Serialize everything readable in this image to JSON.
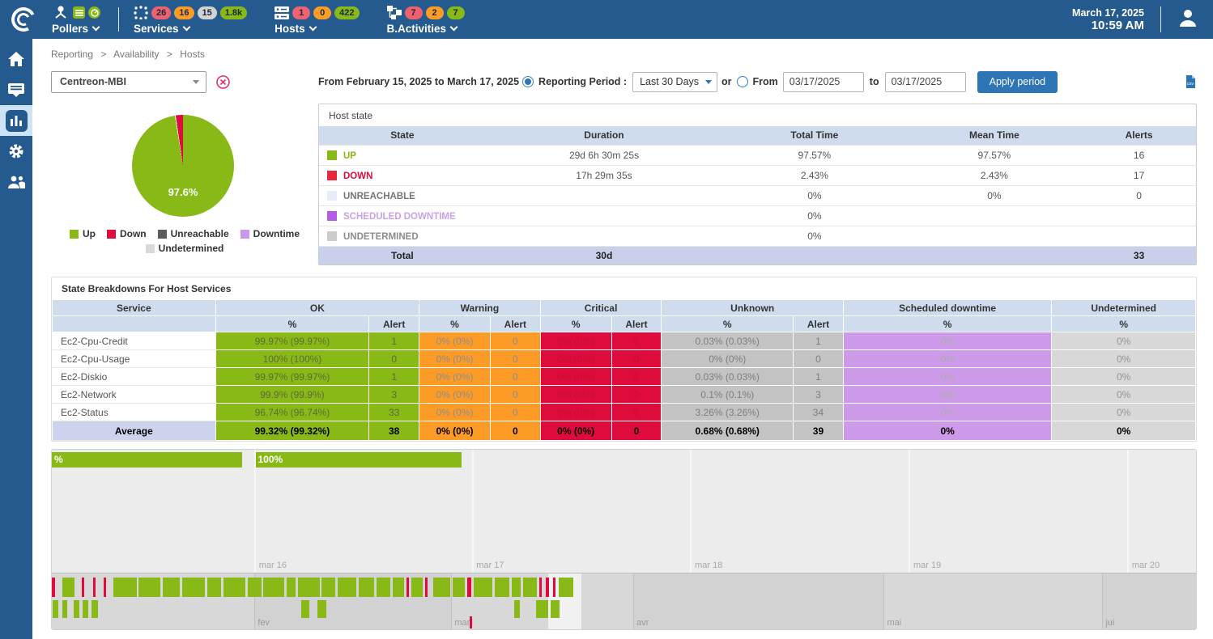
{
  "colors": {
    "topbar_bg": "#255a8e",
    "accent_blue": "#2e75b6",
    "up_green": "#88b917",
    "down_red": "#e00b3d",
    "warning_orange": "#fd9b27",
    "unknown_gray": "#c3c3c3",
    "downtime_purple": "#cd9aea",
    "undetermined_gray": "#d8d8d8",
    "badge_red": "#f0616f",
    "badge_orange": "#fd9b27",
    "badge_gray": "#d3d3d3",
    "badge_green": "#88b917",
    "table_header_bg": "#cfdced",
    "total_row_bg": "#c9d0ea"
  },
  "topbar": {
    "clock": {
      "date": "March 17, 2025",
      "time": "10:59 AM"
    },
    "menus": [
      {
        "label": "Pollers",
        "icon_badges": [
          {
            "name": "list",
            "color": "#88b917"
          },
          {
            "name": "gauge",
            "color": "#88b917"
          }
        ],
        "badges": []
      },
      {
        "label": "Services",
        "badges": [
          {
            "text": "26",
            "color": "#f0616f"
          },
          {
            "text": "16",
            "color": "#fd9b27"
          },
          {
            "text": "15",
            "color": "#d3d3d3"
          },
          {
            "text": "1.8k",
            "color": "#88b917"
          }
        ]
      },
      {
        "label": "Hosts",
        "badges": [
          {
            "text": "1",
            "color": "#f0616f"
          },
          {
            "text": "0",
            "color": "#fd9b27"
          },
          {
            "text": "422",
            "color": "#88b917"
          }
        ]
      },
      {
        "label": "B.Activities",
        "badges": [
          {
            "text": "7",
            "color": "#f0616f"
          },
          {
            "text": "2",
            "color": "#fd9b27"
          },
          {
            "text": "7",
            "color": "#88b917"
          }
        ]
      }
    ]
  },
  "sidebar": {
    "items": [
      {
        "icon": "home",
        "active": false
      },
      {
        "icon": "monitoring",
        "active": false
      },
      {
        "icon": "reporting",
        "active": true
      },
      {
        "icon": "configuration",
        "active": false
      },
      {
        "icon": "administration",
        "active": false
      }
    ]
  },
  "breadcrumb": {
    "items": [
      "Reporting",
      "Availability",
      "Hosts"
    ],
    "separator": ">"
  },
  "filters": {
    "host_select_value": "Centreon-MBI",
    "period_text": "From February 15, 2025 to March 17, 2025",
    "reporting_period_label": "Reporting Period :",
    "period_select_value": "Last 30 Days",
    "or_label": "or",
    "from_label": "From",
    "from_value": "03/17/2025",
    "to_label": "to",
    "to_value": "03/17/2025",
    "apply_label": "Apply period"
  },
  "pie": {
    "value_label": "97.6%",
    "slices": [
      {
        "name": "Up",
        "value": 97.6,
        "color": "#88b917"
      },
      {
        "name": "Down",
        "value": 2.4,
        "color": "#e00b3d"
      }
    ],
    "legend": [
      {
        "label": "Up",
        "color": "#88b917"
      },
      {
        "label": "Down",
        "color": "#e00b3d"
      },
      {
        "label": "Unreachable",
        "color": "#5b5b5b"
      },
      {
        "label": "Downtime",
        "color": "#ca97ef"
      },
      {
        "label": "Undetermined",
        "color": "#d9d9d9"
      }
    ]
  },
  "host_state": {
    "title": "Host state",
    "columns": [
      "State",
      "Duration",
      "Total Time",
      "Mean Time",
      "Alerts"
    ],
    "rows": [
      {
        "state": "UP",
        "square": "#88b917",
        "color": "#88b917",
        "duration": "29d 6h 30m 25s",
        "total_time": "97.57%",
        "mean_time": "97.57%",
        "alerts": "16"
      },
      {
        "state": "DOWN",
        "square": "#e8283c",
        "color": "#e00b3d",
        "duration": "17h 29m 35s",
        "total_time": "2.43%",
        "mean_time": "2.43%",
        "alerts": "17"
      },
      {
        "state": "UNREACHABLE",
        "square": "#e7edf6",
        "color": "#757575",
        "duration": "",
        "total_time": "0%",
        "mean_time": "0%",
        "alerts": "0"
      },
      {
        "state": "SCHEDULED DOWNTIME",
        "square": "#b55ce5",
        "color": "#c9a2e8",
        "duration": "",
        "total_time": "0%",
        "mean_time": "",
        "alerts": ""
      },
      {
        "state": "UNDETERMINED",
        "square": "#cccccc",
        "color": "#8c8c8c",
        "duration": "",
        "total_time": "0%",
        "mean_time": "",
        "alerts": ""
      }
    ],
    "total_row": {
      "label": "Total",
      "duration": "30d",
      "total_time": "",
      "mean_time": "",
      "alerts": "33"
    }
  },
  "breakdown": {
    "title": "State Breakdowns For Host Services",
    "group_headers": [
      "Service",
      "OK",
      "Warning",
      "Critical",
      "Unknown",
      "Scheduled downtime",
      "Undetermined"
    ],
    "sub_headers": [
      "%",
      "Alert",
      "%",
      "Alert",
      "%",
      "Alert",
      "%",
      "Alert",
      "%",
      "%"
    ],
    "rows": [
      {
        "service": "Ec2-Cpu-Credit",
        "ok_pct": "99.97% (99.97%)",
        "ok_alert": "1",
        "warn_pct": "0% (0%)",
        "warn_alert": "0",
        "crit_pct": "0% (0%)",
        "crit_alert": "0",
        "unk_pct": "0.03% (0.03%)",
        "unk_alert": "1",
        "down_pct": "0%",
        "undet_pct": "0%"
      },
      {
        "service": "Ec2-Cpu-Usage",
        "ok_pct": "100% (100%)",
        "ok_alert": "0",
        "warn_pct": "0% (0%)",
        "warn_alert": "0",
        "crit_pct": "0% (0%)",
        "crit_alert": "0",
        "unk_pct": "0% (0%)",
        "unk_alert": "0",
        "down_pct": "0%",
        "undet_pct": "0%"
      },
      {
        "service": "Ec2-Diskio",
        "ok_pct": "99.97% (99.97%)",
        "ok_alert": "1",
        "warn_pct": "0% (0%)",
        "warn_alert": "0",
        "crit_pct": "0% (0%)",
        "crit_alert": "0",
        "unk_pct": "0.03% (0.03%)",
        "unk_alert": "1",
        "down_pct": "0%",
        "undet_pct": "0%"
      },
      {
        "service": "Ec2-Network",
        "ok_pct": "99.9% (99.9%)",
        "ok_alert": "3",
        "warn_pct": "0% (0%)",
        "warn_alert": "0",
        "crit_pct": "0% (0%)",
        "crit_alert": "0",
        "unk_pct": "0.1% (0.1%)",
        "unk_alert": "3",
        "down_pct": "0%",
        "undet_pct": "0%"
      },
      {
        "service": "Ec2-Status",
        "ok_pct": "96.74% (96.74%)",
        "ok_alert": "33",
        "warn_pct": "0% (0%)",
        "warn_alert": "0",
        "crit_pct": "0% (0%)",
        "crit_alert": "0",
        "unk_pct": "3.26% (3.26%)",
        "unk_alert": "34",
        "down_pct": "0%",
        "undet_pct": "0%"
      }
    ],
    "average_row": {
      "service": "Average",
      "ok_pct": "99.32% (99.32%)",
      "ok_alert": "38",
      "warn_pct": "0% (0%)",
      "warn_alert": "0",
      "crit_pct": "0% (0%)",
      "crit_alert": "0",
      "unk_pct": "0.68% (0.68%)",
      "unk_alert": "39",
      "down_pct": "0%",
      "undet_pct": "0%"
    }
  },
  "timeline": {
    "bars": [
      {
        "label": "%",
        "left_pct": 0,
        "width_pct": 16.6,
        "color": "#88b917"
      },
      {
        "label": "100%",
        "left_pct": 17.8,
        "width_pct": 18.0,
        "color": "#88b917"
      }
    ],
    "day_gridlines_pct": [
      17.7,
      36.7,
      55.8,
      74.9,
      94.0
    ],
    "day_labels": [
      "mar 16",
      "mar 17",
      "mar 18",
      "mar 19",
      "mar 20"
    ],
    "navigator": {
      "month_gridlines_pct": [
        17.7,
        34.9,
        50.8,
        72.7,
        91.8
      ],
      "month_labels": [
        "fev",
        "mar",
        "avr",
        "mai",
        "jui"
      ],
      "band_colors": [
        "#d8d8d8",
        "#d2d2d2"
      ],
      "window": {
        "left_pct": 43.4,
        "width_pct": 2.85
      },
      "red_tick_pct": 36.5,
      "strip1": [
        {
          "x": 0.0,
          "w": 0.25,
          "c": "r"
        },
        {
          "x": 0.9,
          "w": 1.1,
          "c": "g"
        },
        {
          "x": 2.6,
          "w": 0.25,
          "c": "r"
        },
        {
          "x": 3.6,
          "w": 0.25,
          "c": "r"
        },
        {
          "x": 4.5,
          "w": 0.25,
          "c": "r"
        },
        {
          "x": 5.4,
          "w": 2.0,
          "c": "g"
        },
        {
          "x": 7.6,
          "w": 1.9,
          "c": "g"
        },
        {
          "x": 9.7,
          "w": 1.5,
          "c": "g"
        },
        {
          "x": 11.4,
          "w": 2.0,
          "c": "g"
        },
        {
          "x": 13.6,
          "w": 1.2,
          "c": "g"
        },
        {
          "x": 15.0,
          "w": 1.9,
          "c": "g"
        },
        {
          "x": 17.1,
          "w": 1.2,
          "c": "g"
        },
        {
          "x": 18.5,
          "w": 1.8,
          "c": "g"
        },
        {
          "x": 20.5,
          "w": 0.8,
          "c": "g"
        },
        {
          "x": 21.5,
          "w": 1.9,
          "c": "g"
        },
        {
          "x": 23.6,
          "w": 1.2,
          "c": "g"
        },
        {
          "x": 25.0,
          "w": 1.6,
          "c": "g"
        },
        {
          "x": 26.8,
          "w": 1.4,
          "c": "g"
        },
        {
          "x": 28.4,
          "w": 1.2,
          "c": "g"
        },
        {
          "x": 29.8,
          "w": 1.0,
          "c": "g"
        },
        {
          "x": 31.0,
          "w": 0.2,
          "c": "r"
        },
        {
          "x": 31.4,
          "w": 1.0,
          "c": "g"
        },
        {
          "x": 32.6,
          "w": 0.25,
          "c": "r"
        },
        {
          "x": 33.3,
          "w": 1.5,
          "c": "g"
        },
        {
          "x": 35.0,
          "w": 1.1,
          "c": "g"
        },
        {
          "x": 36.3,
          "w": 0.35,
          "c": "r"
        },
        {
          "x": 36.9,
          "w": 1.6,
          "c": "g"
        },
        {
          "x": 38.7,
          "w": 1.3,
          "c": "g"
        },
        {
          "x": 40.2,
          "w": 0.8,
          "c": "g"
        },
        {
          "x": 41.2,
          "w": 1.2,
          "c": "g"
        },
        {
          "x": 42.6,
          "w": 0.22,
          "c": "r"
        },
        {
          "x": 43.2,
          "w": 0.22,
          "c": "r"
        },
        {
          "x": 43.8,
          "w": 0.22,
          "c": "r"
        },
        {
          "x": 44.3,
          "w": 1.3,
          "c": "g"
        }
      ],
      "strip2": [
        {
          "x": 0.1,
          "w": 0.45,
          "c": "g"
        },
        {
          "x": 0.9,
          "w": 0.45,
          "c": "g"
        },
        {
          "x": 1.9,
          "w": 0.5,
          "c": "g"
        },
        {
          "x": 2.7,
          "w": 0.5,
          "c": "g"
        },
        {
          "x": 3.5,
          "w": 0.5,
          "c": "g"
        },
        {
          "x": 21.8,
          "w": 0.7,
          "c": "g"
        },
        {
          "x": 23.2,
          "w": 0.8,
          "c": "g"
        },
        {
          "x": 40.4,
          "w": 0.5,
          "c": "g"
        },
        {
          "x": 42.3,
          "w": 1.1,
          "c": "g"
        },
        {
          "x": 43.6,
          "w": 0.8,
          "c": "g"
        }
      ]
    }
  }
}
